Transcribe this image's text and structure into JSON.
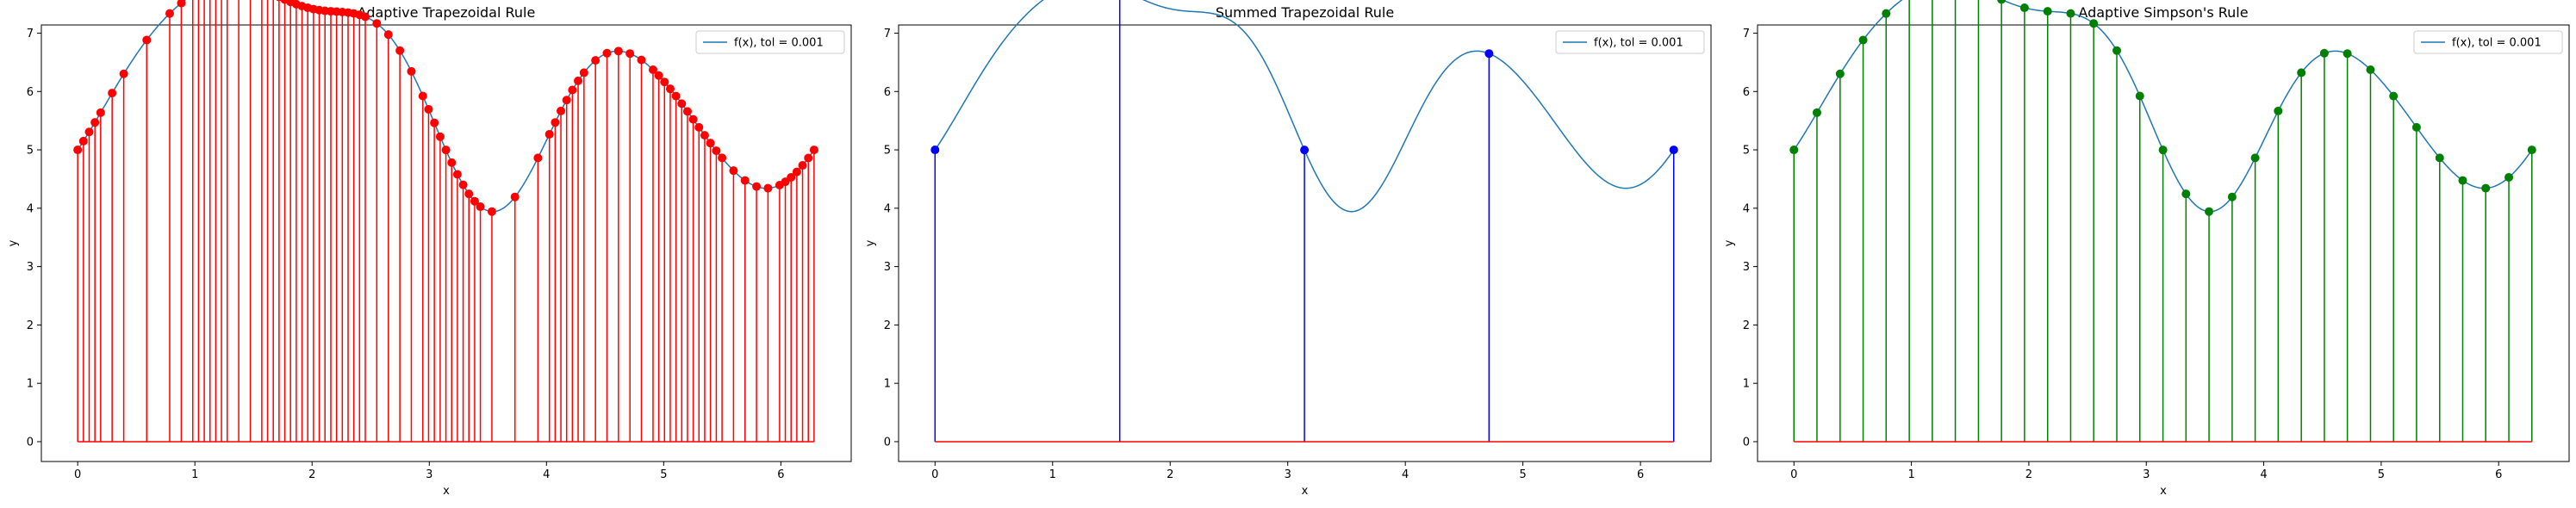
{
  "colors": {
    "curve": "#1f77b4",
    "trapezoid_adaptive": "#ff0000",
    "trapezoid_summed": "#0000ff",
    "simpson_adaptive": "#008000",
    "baseline": "#ff0000"
  },
  "chart_data": [
    {
      "type": "line",
      "title": "Adaptive Trapezoidal Rule",
      "xlabel": "x",
      "ylabel": "y",
      "xlim": [
        -0.31,
        6.6
      ],
      "ylim": [
        -0.34,
        7.14
      ],
      "xticks": [
        "0",
        "1",
        "2",
        "3",
        "4",
        "5",
        "6"
      ],
      "yticks": [
        "0",
        "1",
        "2",
        "3",
        "4",
        "5",
        "6",
        "7"
      ],
      "grid": false,
      "legend": {
        "placement": "top-right",
        "entries": [
          "f(x), tol = 0.001"
        ]
      },
      "series": [
        {
          "name": "f(x), tol = 0.001",
          "function": "5 + sin(x) + 2 sin(2x)·sin(x)... sampled",
          "x_range": [
            0,
            6.283
          ]
        }
      ],
      "marker_color": "red",
      "nodes": [
        0.0,
        0.049,
        0.098,
        0.147,
        0.196,
        0.294,
        0.393,
        0.589,
        0.785,
        0.884,
        0.982,
        1.031,
        1.08,
        1.129,
        1.178,
        1.227,
        1.276,
        1.374,
        1.473,
        1.571,
        1.62,
        1.669,
        1.718,
        1.767,
        1.816,
        1.865,
        1.914,
        1.963,
        2.012,
        2.061,
        2.11,
        2.16,
        2.209,
        2.258,
        2.307,
        2.356,
        2.405,
        2.454,
        2.552,
        2.651,
        2.749,
        2.847,
        2.945,
        2.994,
        3.043,
        3.093,
        3.142,
        3.191,
        3.24,
        3.289,
        3.338,
        3.387,
        3.436,
        3.534,
        3.731,
        3.927,
        4.025,
        4.074,
        4.123,
        4.172,
        4.221,
        4.27,
        4.32,
        4.418,
        4.516,
        4.614,
        4.712,
        4.81,
        4.909,
        4.958,
        5.007,
        5.056,
        5.105,
        5.154,
        5.203,
        5.252,
        5.301,
        5.35,
        5.399,
        5.449,
        5.498,
        5.596,
        5.694,
        5.792,
        5.89,
        5.989,
        6.038,
        6.087,
        6.136,
        6.185,
        6.234,
        6.283
      ]
    },
    {
      "type": "line",
      "title": "Summed Trapezoidal Rule",
      "xlabel": "x",
      "ylabel": "y",
      "xlim": [
        -0.31,
        6.6
      ],
      "ylim": [
        -0.34,
        7.14
      ],
      "xticks": [
        "0",
        "1",
        "2",
        "3",
        "4",
        "5",
        "6"
      ],
      "yticks": [
        "0",
        "1",
        "2",
        "3",
        "4",
        "5",
        "6",
        "7"
      ],
      "grid": false,
      "legend": {
        "placement": "top-right",
        "entries": [
          "f(x), tol = 0.001"
        ]
      },
      "series": [
        {
          "name": "f(x), tol = 0.001",
          "x_range": [
            0,
            6.283
          ]
        }
      ],
      "marker_color": "blue",
      "nodes": [
        0.0,
        1.571,
        3.142,
        4.712,
        6.283
      ]
    },
    {
      "type": "line",
      "title": "Adaptive Simpson's Rule",
      "xlabel": "x",
      "ylabel": "y",
      "xlim": [
        -0.31,
        6.6
      ],
      "ylim": [
        -0.34,
        7.14
      ],
      "xticks": [
        "0",
        "1",
        "2",
        "3",
        "4",
        "5",
        "6"
      ],
      "yticks": [
        "0",
        "1",
        "2",
        "3",
        "4",
        "5",
        "6",
        "7"
      ],
      "grid": false,
      "legend": {
        "placement": "top-right",
        "entries": [
          "f(x), tol = 0.001"
        ]
      },
      "series": [
        {
          "name": "f(x), tol = 0.001",
          "x_range": [
            0,
            6.283
          ]
        }
      ],
      "marker_color": "green",
      "nodes": [
        0.0,
        0.196,
        0.393,
        0.589,
        0.785,
        0.982,
        1.178,
        1.374,
        1.571,
        1.767,
        1.963,
        2.16,
        2.356,
        2.552,
        2.749,
        2.945,
        3.142,
        3.338,
        3.534,
        3.731,
        3.927,
        4.123,
        4.32,
        4.516,
        4.712,
        4.909,
        5.105,
        5.301,
        5.498,
        5.694,
        5.89,
        6.087,
        6.283
      ]
    }
  ]
}
